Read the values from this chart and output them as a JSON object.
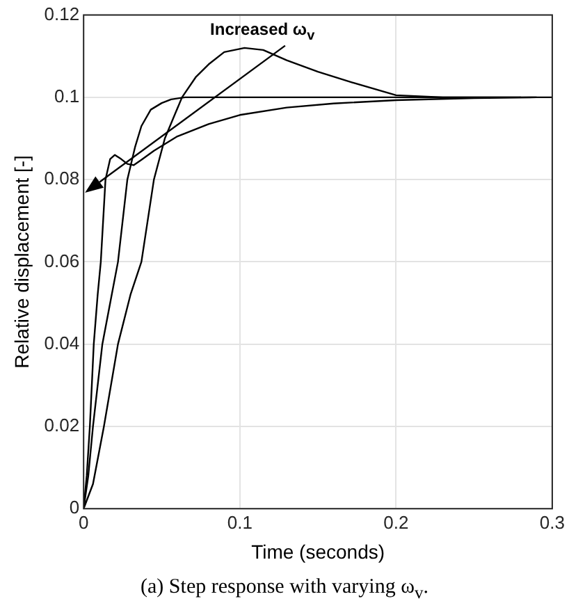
{
  "chart_data": {
    "type": "line",
    "xlabel": "Time (seconds)",
    "ylabel": "Relative displacement [-]",
    "annotations": [
      "Increased ω$_{v}$",
      "(a) Step response with varying ω$_{v}$."
    ],
    "xlim": [
      0,
      0.3
    ],
    "ylim": [
      0,
      0.12
    ],
    "xticks": [
      0,
      0.1,
      0.2,
      0.3
    ],
    "yticks": [
      0,
      0.02,
      0.04,
      0.06,
      0.08,
      0.1,
      0.12
    ],
    "grid": true,
    "legend": false,
    "marker": "none",
    "line_style": "solid",
    "series": [
      {
        "color": "#000000",
        "x": [
          0,
          0.002,
          0.004,
          0.0065,
          0.009,
          0.011,
          0.014,
          0.017,
          0.02,
          0.024,
          0.028,
          0.032,
          0.037,
          0.045,
          0.06,
          0.08,
          0.1,
          0.13,
          0.16,
          0.2,
          0.25,
          0.29
        ],
        "values": [
          0,
          0.008,
          0.02,
          0.04,
          0.052,
          0.06,
          0.08,
          0.085,
          0.086,
          0.085,
          0.0838,
          0.0835,
          0.0848,
          0.087,
          0.0905,
          0.0935,
          0.0957,
          0.0975,
          0.0985,
          0.0993,
          0.0998,
          0.1
        ]
      },
      {
        "color": "#000000",
        "x": [
          0,
          0.003,
          0.006,
          0.012,
          0.017,
          0.022,
          0.028,
          0.033,
          0.037,
          0.043,
          0.05,
          0.056,
          0.065,
          0.08,
          0.12,
          0.2,
          0.3
        ],
        "values": [
          0,
          0.008,
          0.02,
          0.04,
          0.05,
          0.06,
          0.08,
          0.088,
          0.093,
          0.097,
          0.0986,
          0.0995,
          0.1,
          0.1,
          0.1,
          0.1,
          0.1
        ]
      },
      {
        "color": "#000000",
        "x": [
          0,
          0.006,
          0.013,
          0.022,
          0.03,
          0.037,
          0.045,
          0.052,
          0.063,
          0.072,
          0.08,
          0.09,
          0.103,
          0.115,
          0.13,
          0.15,
          0.172,
          0.2,
          0.23,
          0.26,
          0.28
        ],
        "values": [
          0,
          0.006,
          0.02,
          0.04,
          0.052,
          0.06,
          0.08,
          0.09,
          0.1,
          0.105,
          0.108,
          0.111,
          0.112,
          0.1115,
          0.109,
          0.1062,
          0.1036,
          0.1005,
          0.1,
          0.1,
          0.1
        ]
      }
    ]
  }
}
